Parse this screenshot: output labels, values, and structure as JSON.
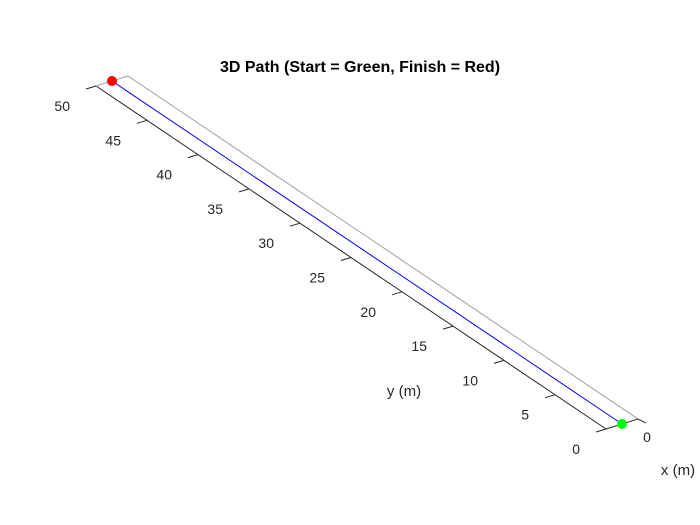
{
  "chart_data": {
    "type": "line",
    "title": "3D Path (Start = Green, Finish = Red)",
    "xlabel": "x (m)",
    "ylabel": "y (m)",
    "zlabel": "",
    "xlim": [
      0,
      1
    ],
    "ylim": [
      0,
      50
    ],
    "x_ticks": [
      "0"
    ],
    "y_ticks": [
      "0",
      "5",
      "10",
      "15",
      "20",
      "25",
      "30",
      "35",
      "40",
      "45",
      "50"
    ],
    "grid": false,
    "series": [
      {
        "x": [
          0.5,
          0.5
        ],
        "y": [
          0,
          50
        ],
        "color": "#0000ff"
      }
    ],
    "markers": [
      {
        "point": "start",
        "x": 0.5,
        "y": 0,
        "color": "#00ff00"
      },
      {
        "point": "finish",
        "x": 0.5,
        "y": 50,
        "color": "#ff0000"
      }
    ],
    "colors": {
      "path": "#0000ff",
      "start": "#00ff00",
      "finish": "#ff0000",
      "axis": "#262626",
      "box": "#a0a0a0"
    }
  }
}
